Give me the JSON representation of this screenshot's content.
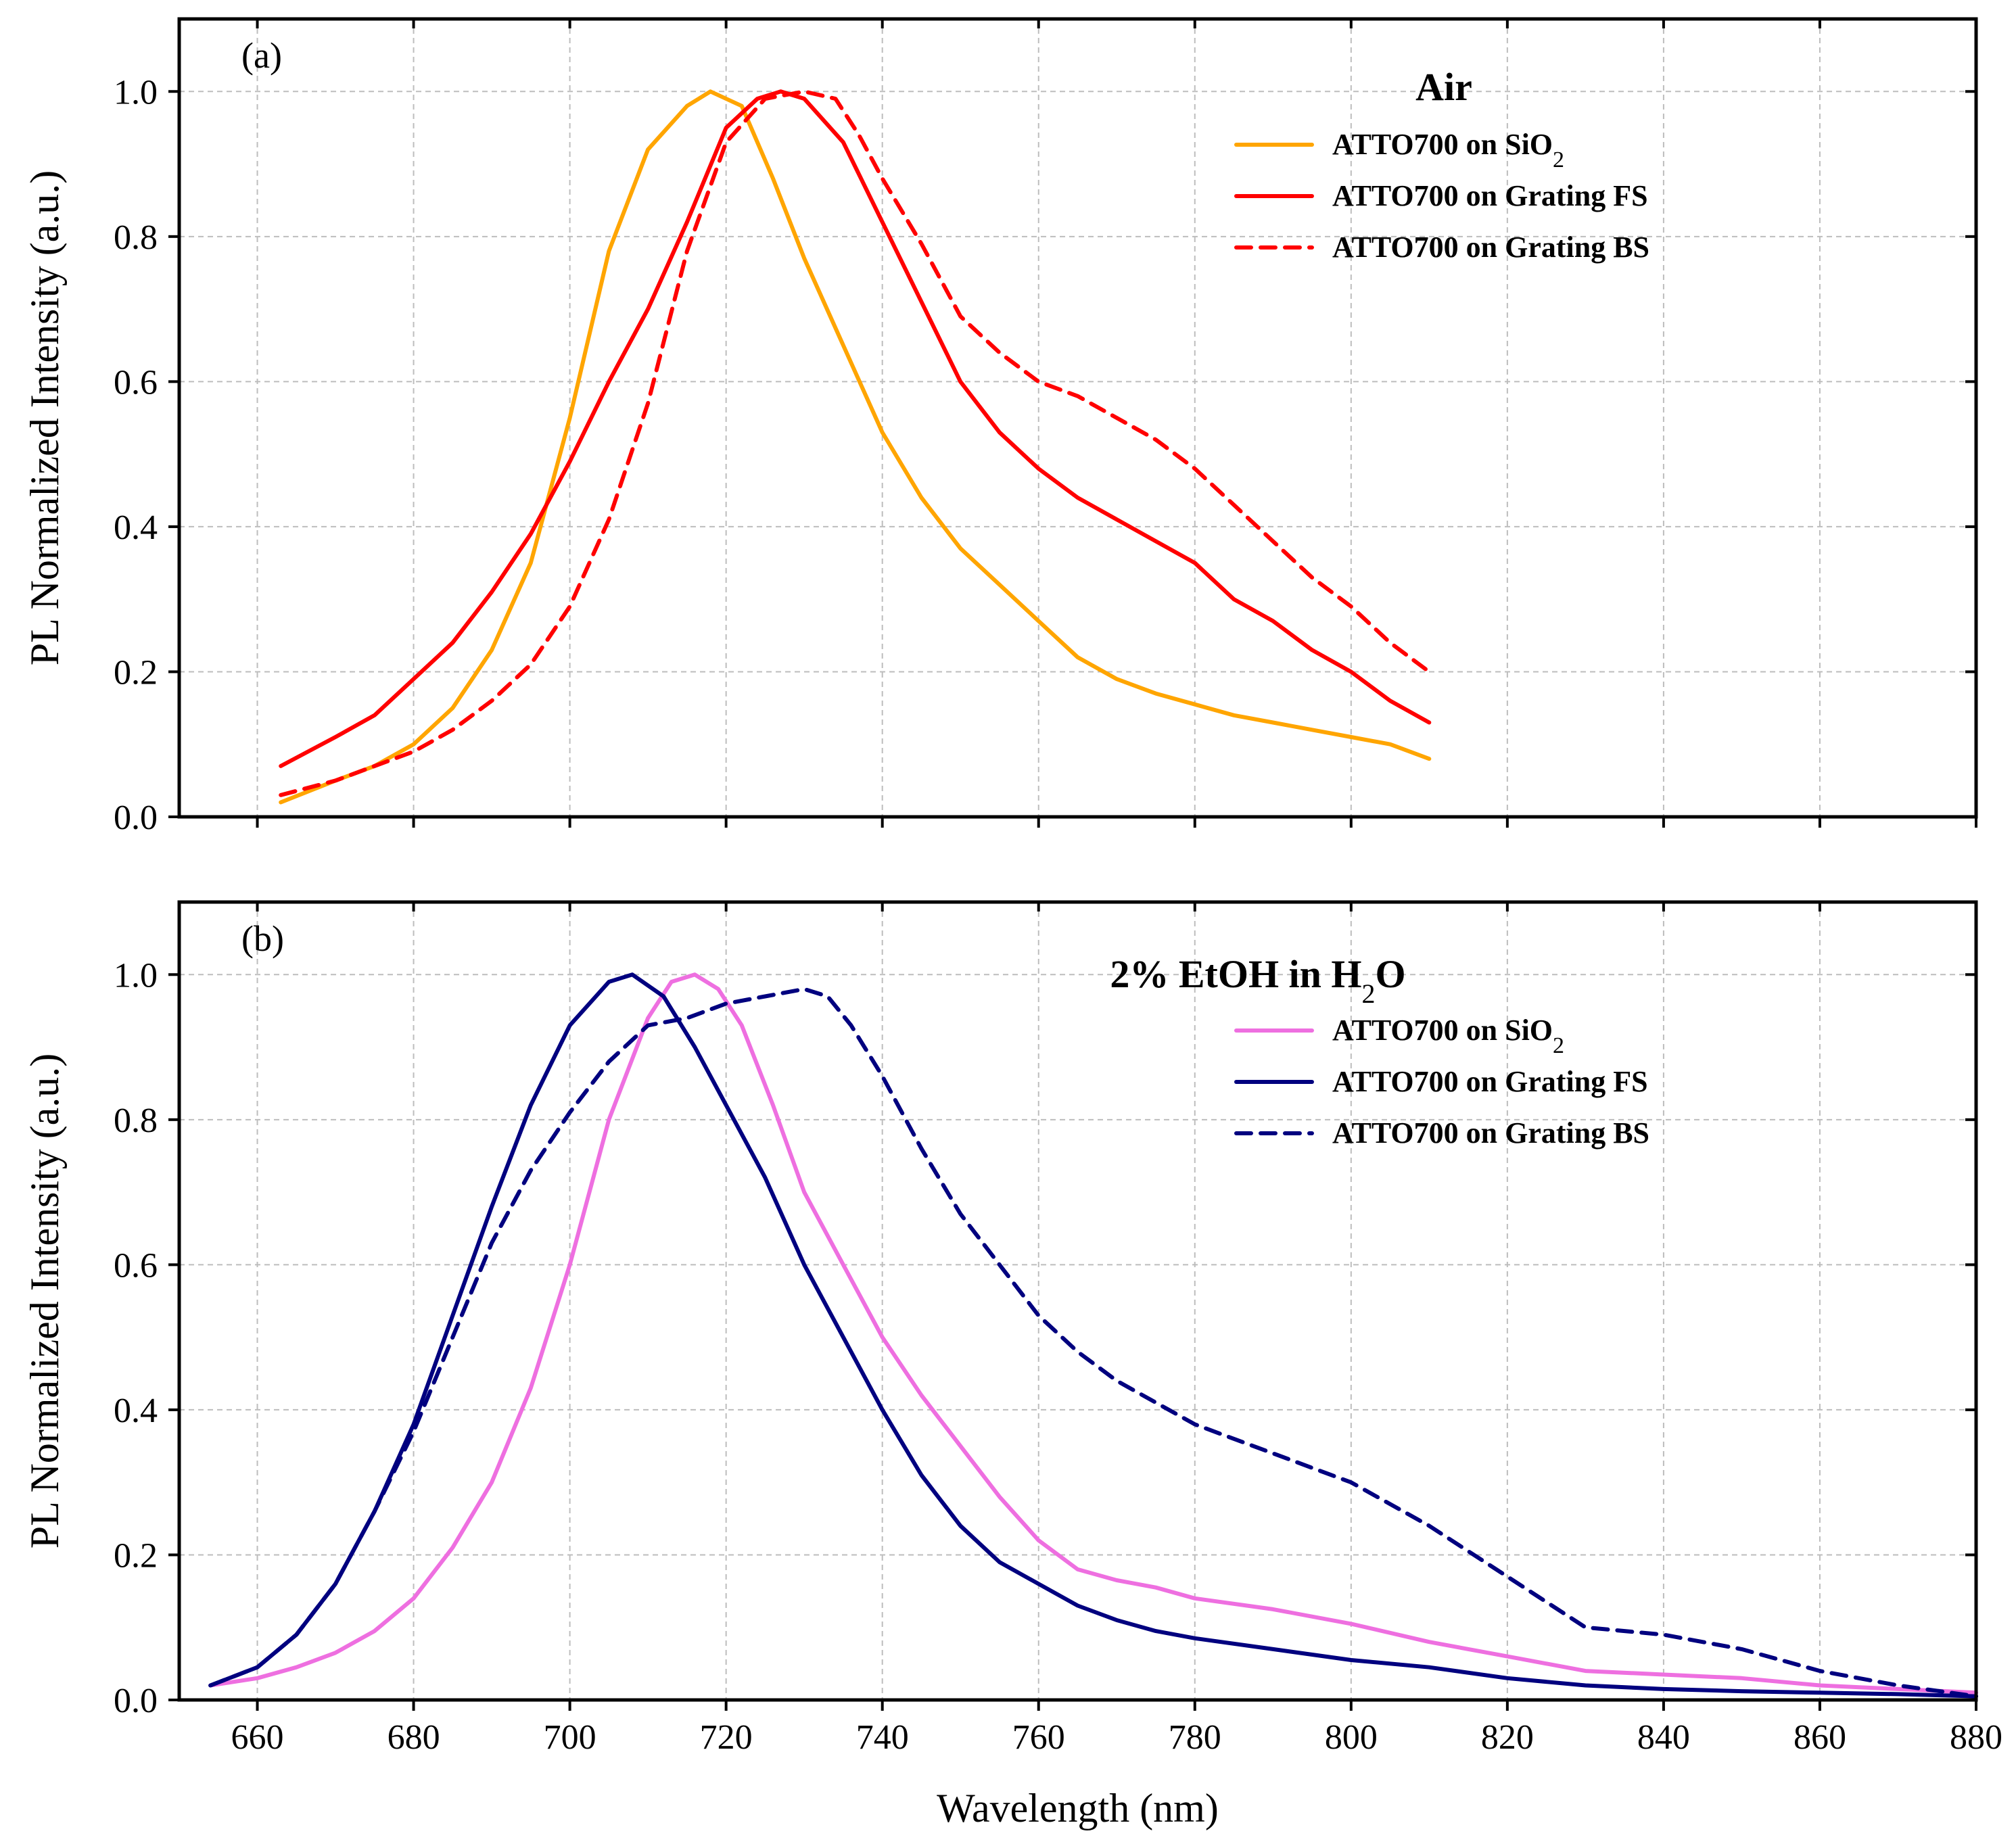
{
  "chart_data": [
    {
      "type": "line",
      "panel_label": "(a)",
      "legend_title": "Air",
      "legend_title_sub": "",
      "legend_title_post": "",
      "xlabel": "Wavelength (nm)",
      "ylabel": "PL Normalized Intensity (a.u.)",
      "xlim": [
        650,
        880
      ],
      "ylim": [
        0,
        1.1
      ],
      "x_ticks": [
        660,
        680,
        700,
        720,
        740,
        760,
        780,
        800,
        820,
        840,
        860,
        880
      ],
      "y_ticks": [
        "0.0",
        "0.2",
        "0.4",
        "0.6",
        "0.8",
        "1.0"
      ],
      "show_x_tick_labels": false,
      "grid": true,
      "legend_position": "top-right",
      "series": [
        {
          "name": "ATTO700 on SiO",
          "name_sub": "2",
          "name_post": "",
          "color": "#FFA500",
          "dash": "solid",
          "x": [
            663,
            670,
            675,
            680,
            685,
            690,
            695,
            700,
            705,
            710,
            715,
            718,
            722,
            726,
            730,
            735,
            740,
            745,
            750,
            755,
            760,
            765,
            770,
            775,
            780,
            785,
            790,
            795,
            800,
            805,
            810
          ],
          "y": [
            0.02,
            0.05,
            0.07,
            0.1,
            0.15,
            0.23,
            0.35,
            0.55,
            0.78,
            0.92,
            0.98,
            1.0,
            0.98,
            0.88,
            0.77,
            0.65,
            0.53,
            0.44,
            0.37,
            0.32,
            0.27,
            0.22,
            0.19,
            0.17,
            0.155,
            0.14,
            0.13,
            0.12,
            0.11,
            0.1,
            0.08
          ]
        },
        {
          "name": "ATTO700 on Grating FS",
          "name_sub": "",
          "name_post": "",
          "color": "#FF0000",
          "dash": "solid",
          "x": [
            663,
            670,
            675,
            680,
            685,
            690,
            695,
            700,
            705,
            710,
            715,
            720,
            724,
            727,
            730,
            735,
            740,
            745,
            750,
            755,
            760,
            765,
            770,
            775,
            780,
            785,
            790,
            795,
            800,
            805,
            810
          ],
          "y": [
            0.07,
            0.11,
            0.14,
            0.19,
            0.24,
            0.31,
            0.39,
            0.49,
            0.6,
            0.7,
            0.82,
            0.95,
            0.99,
            1.0,
            0.99,
            0.93,
            0.82,
            0.71,
            0.6,
            0.53,
            0.48,
            0.44,
            0.41,
            0.38,
            0.35,
            0.3,
            0.27,
            0.23,
            0.2,
            0.16,
            0.13
          ]
        },
        {
          "name": "ATTO700 on Grating BS",
          "name_sub": "",
          "name_post": "",
          "color": "#FF0000",
          "dash": "dashed",
          "x": [
            663,
            670,
            675,
            680,
            685,
            690,
            695,
            700,
            705,
            710,
            715,
            720,
            725,
            730,
            734,
            737,
            740,
            745,
            750,
            755,
            760,
            765,
            770,
            775,
            780,
            785,
            790,
            795,
            800,
            805,
            810
          ],
          "y": [
            0.03,
            0.05,
            0.07,
            0.09,
            0.12,
            0.16,
            0.21,
            0.29,
            0.41,
            0.57,
            0.78,
            0.93,
            0.99,
            1.0,
            0.99,
            0.94,
            0.88,
            0.79,
            0.69,
            0.64,
            0.6,
            0.58,
            0.55,
            0.52,
            0.48,
            0.43,
            0.38,
            0.33,
            0.29,
            0.24,
            0.2
          ]
        }
      ]
    },
    {
      "type": "line",
      "panel_label": "(b)",
      "legend_title": "2% EtOH in H",
      "legend_title_sub": "2",
      "legend_title_post": "O",
      "xlabel": "Wavelength (nm)",
      "ylabel": "PL Normalized Intensity (a.u.)",
      "xlim": [
        650,
        880
      ],
      "ylim": [
        0,
        1.1
      ],
      "x_ticks": [
        660,
        680,
        700,
        720,
        740,
        760,
        780,
        800,
        820,
        840,
        860,
        880
      ],
      "y_ticks": [
        "0.0",
        "0.2",
        "0.4",
        "0.6",
        "0.8",
        "1.0"
      ],
      "show_x_tick_labels": true,
      "grid": true,
      "legend_position": "top-right",
      "series": [
        {
          "name": "ATTO700 on SiO",
          "name_sub": "2",
          "name_post": "",
          "color": "#EE6FE0",
          "dash": "solid",
          "x": [
            654,
            660,
            665,
            670,
            675,
            680,
            685,
            690,
            695,
            700,
            705,
            710,
            713,
            716,
            719,
            722,
            726,
            730,
            735,
            740,
            745,
            750,
            755,
            760,
            765,
            770,
            775,
            780,
            790,
            800,
            810,
            820,
            830,
            840,
            850,
            860,
            870,
            880
          ],
          "y": [
            0.02,
            0.03,
            0.045,
            0.065,
            0.095,
            0.14,
            0.21,
            0.3,
            0.43,
            0.6,
            0.8,
            0.94,
            0.99,
            1.0,
            0.98,
            0.93,
            0.82,
            0.7,
            0.6,
            0.5,
            0.42,
            0.35,
            0.28,
            0.22,
            0.18,
            0.165,
            0.155,
            0.14,
            0.125,
            0.105,
            0.08,
            0.06,
            0.04,
            0.035,
            0.03,
            0.02,
            0.015,
            0.01
          ]
        },
        {
          "name": "ATTO700 on Grating FS",
          "name_sub": "",
          "name_post": "",
          "color": "#00007F",
          "dash": "solid",
          "x": [
            654,
            660,
            665,
            670,
            675,
            680,
            685,
            690,
            695,
            700,
            705,
            708,
            712,
            716,
            720,
            725,
            730,
            735,
            740,
            745,
            750,
            755,
            760,
            765,
            770,
            775,
            780,
            790,
            800,
            810,
            820,
            830,
            840,
            850,
            860,
            870,
            880
          ],
          "y": [
            0.02,
            0.045,
            0.09,
            0.16,
            0.26,
            0.38,
            0.53,
            0.68,
            0.82,
            0.93,
            0.99,
            1.0,
            0.97,
            0.9,
            0.82,
            0.72,
            0.6,
            0.5,
            0.4,
            0.31,
            0.24,
            0.19,
            0.16,
            0.13,
            0.11,
            0.095,
            0.085,
            0.07,
            0.055,
            0.045,
            0.03,
            0.02,
            0.015,
            0.012,
            0.01,
            0.008,
            0.005
          ]
        },
        {
          "name": "ATTO700 on Grating BS",
          "name_sub": "",
          "name_post": "",
          "color": "#00007F",
          "dash": "dashed",
          "x": [
            654,
            660,
            665,
            670,
            675,
            680,
            685,
            690,
            695,
            700,
            705,
            710,
            715,
            720,
            725,
            730,
            733,
            736,
            740,
            745,
            750,
            755,
            760,
            765,
            770,
            775,
            780,
            790,
            800,
            805,
            810,
            820,
            830,
            840,
            850,
            860,
            870,
            880
          ],
          "y": [
            0.02,
            0.045,
            0.09,
            0.16,
            0.26,
            0.37,
            0.5,
            0.63,
            0.73,
            0.81,
            0.88,
            0.93,
            0.94,
            0.96,
            0.97,
            0.98,
            0.97,
            0.93,
            0.86,
            0.76,
            0.67,
            0.6,
            0.53,
            0.48,
            0.44,
            0.41,
            0.38,
            0.34,
            0.3,
            0.27,
            0.24,
            0.17,
            0.1,
            0.09,
            0.07,
            0.04,
            0.02,
            0.005
          ]
        }
      ]
    }
  ]
}
